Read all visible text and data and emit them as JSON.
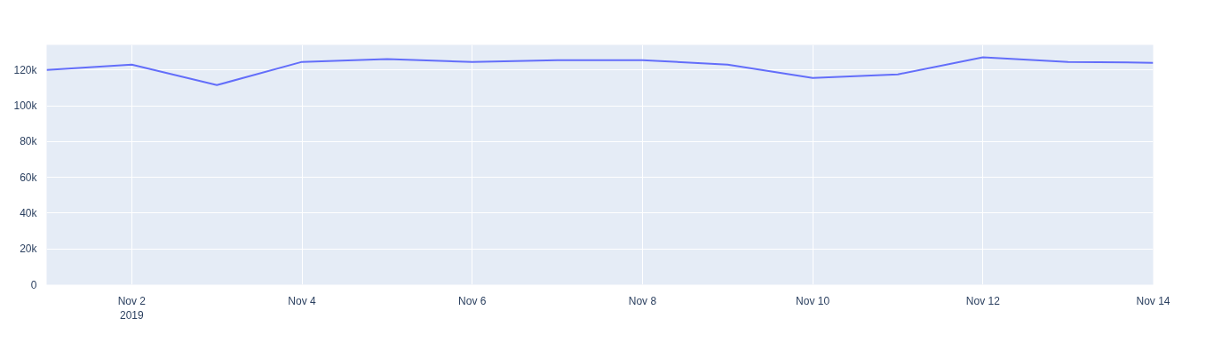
{
  "chart_data": {
    "type": "line",
    "x": [
      "2019-11-01",
      "2019-11-02",
      "2019-11-03",
      "2019-11-04",
      "2019-11-05",
      "2019-11-06",
      "2019-11-07",
      "2019-11-08",
      "2019-11-09",
      "2019-11-10",
      "2019-11-11",
      "2019-11-12",
      "2019-11-13",
      "2019-11-14"
    ],
    "series": [
      {
        "color": "#636efa",
        "values": [
          120000,
          123000,
          111500,
          124500,
          126000,
          124500,
          125500,
          125500,
          123000,
          115500,
          117500,
          127000,
          124500,
          124000
        ]
      }
    ],
    "xlim": [
      "2019-11-01",
      "2019-11-14"
    ],
    "xticks": [
      {
        "value": "2019-11-02",
        "label": "Nov 2\n2019"
      },
      {
        "value": "2019-11-04",
        "label": "Nov 4"
      },
      {
        "value": "2019-11-06",
        "label": "Nov 6"
      },
      {
        "value": "2019-11-08",
        "label": "Nov 8"
      },
      {
        "value": "2019-11-10",
        "label": "Nov 10"
      },
      {
        "value": "2019-11-12",
        "label": "Nov 12"
      },
      {
        "value": "2019-11-14",
        "label": "Nov 14"
      }
    ],
    "ylim": [
      0,
      134000
    ],
    "yticks": [
      0,
      {
        "value": 20000,
        "label": "20k"
      },
      {
        "value": 40000,
        "label": "40k"
      },
      {
        "value": 60000,
        "label": "60k"
      },
      {
        "value": 80000,
        "label": "80k"
      },
      {
        "value": 100000,
        "label": "100k"
      },
      {
        "value": 120000,
        "label": "120k"
      }
    ],
    "grid": true
  }
}
